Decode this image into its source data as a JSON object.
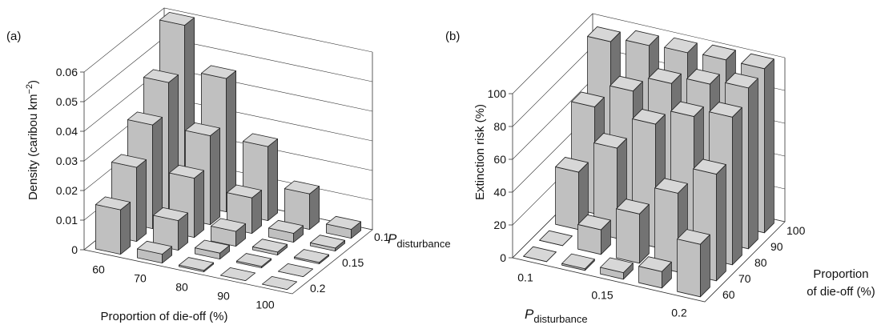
{
  "chart_data": [
    {
      "type": "bar3d",
      "panel": "(a)",
      "ylabel": "Density (caribou km",
      "ylabel_sup": "−2",
      "ylabel_end": ")",
      "xlabel": "Proportion of die-off (%)",
      "zlabel": "P",
      "zlabel_sub": "disturbance",
      "categories": [
        "60",
        "70",
        "80",
        "90",
        "100"
      ],
      "depth_categories": [
        "0.2",
        null,
        "0.15",
        null,
        "0.1"
      ],
      "values": [
        [
          0.015,
          0.003,
          0.0005,
          0,
          0
        ],
        [
          0.025,
          0.01,
          0.002,
          0.0005,
          0
        ],
        [
          0.035,
          0.02,
          0.005,
          0.001,
          0.0005
        ],
        [
          0.045,
          0.03,
          0.012,
          0.003,
          0.001
        ],
        [
          0.06,
          0.045,
          0.025,
          0.012,
          0.003
        ]
      ],
      "color": "#c0c0c0",
      "ylim": [
        0,
        0.06
      ],
      "yticks": [
        0,
        0.01,
        0.02,
        0.03,
        0.04,
        0.05,
        0.06
      ],
      "grid": true
    },
    {
      "type": "bar3d",
      "panel": "(b)",
      "ylabel": "Extinction risk (%)",
      "xlabel": "P",
      "xlabel_sub": "disturbance",
      "zlabel": [
        "Proportion",
        "of die-off (%)"
      ],
      "categories": [
        "0.1",
        null,
        "0.15",
        null,
        "0.2"
      ],
      "depth_categories": [
        "60",
        "70",
        "80",
        "90",
        "100"
      ],
      "values": [
        [
          0,
          1,
          4,
          10,
          32
        ],
        [
          0,
          15,
          30,
          48,
          65
        ],
        [
          35,
          55,
          75,
          85,
          90
        ],
        [
          65,
          80,
          90,
          95,
          98
        ],
        [
          95,
          98,
          99,
          100,
          100
        ]
      ],
      "color": "#c0c0c0",
      "ylim": [
        0,
        100
      ],
      "yticks": [
        0,
        20,
        40,
        60,
        80,
        100
      ],
      "grid": true
    }
  ]
}
